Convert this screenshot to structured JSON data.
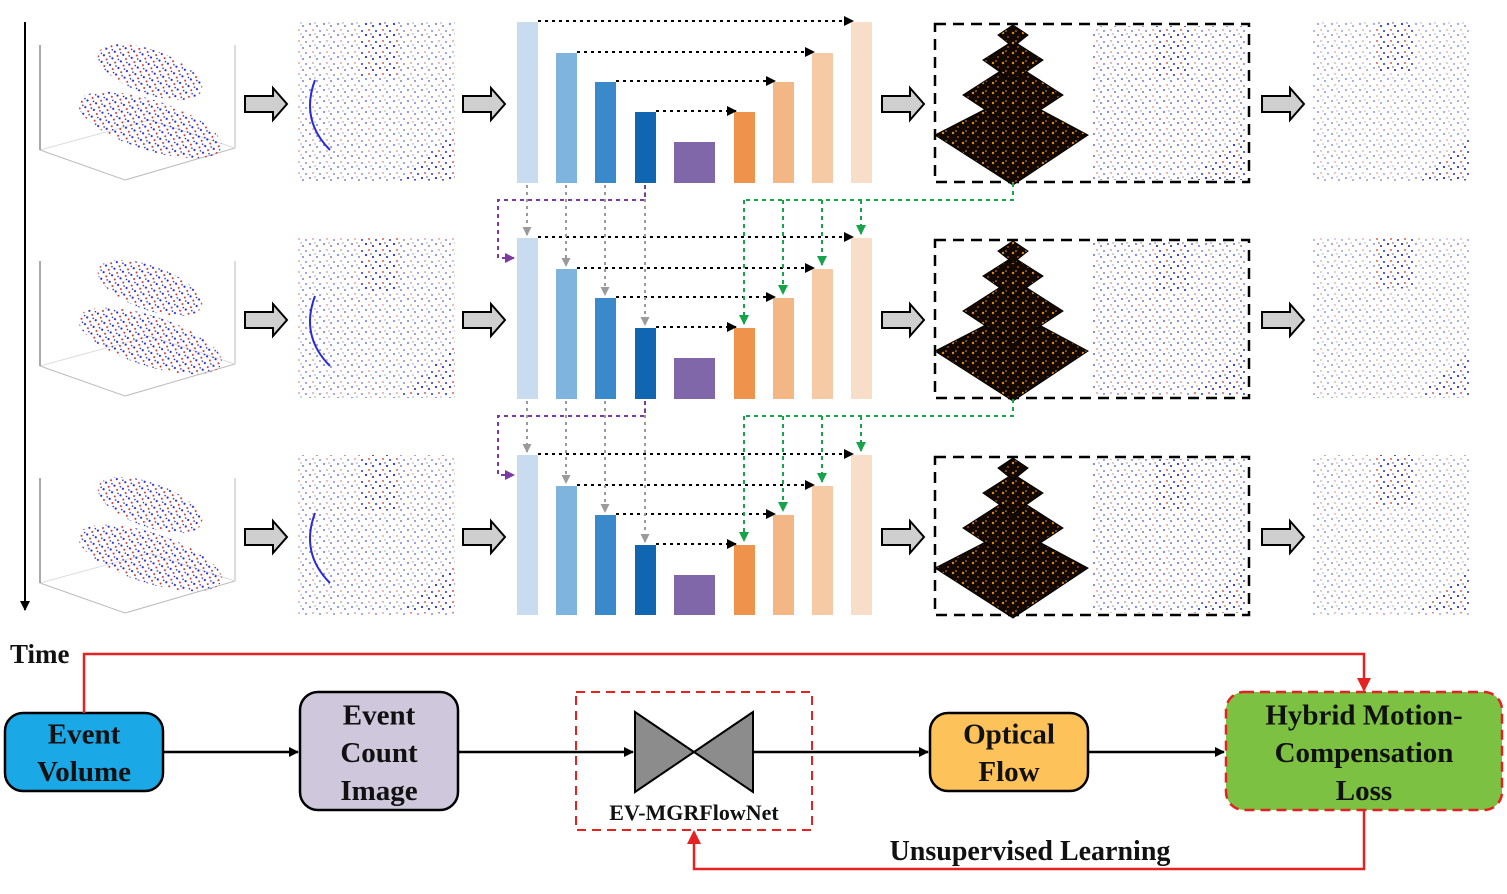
{
  "time_axis": {
    "label": "Time"
  },
  "pipeline": {
    "event_volume": "Event Volume",
    "event_count_image": "Event Count Image",
    "network": "EV-MGRFlowNet",
    "optical_flow": "Optical Flow",
    "loss": "Hybrid Motion-Compensation Loss",
    "feedback_label": "Unsupervised Learning"
  },
  "rows": [
    "timestep-1",
    "timestep-2",
    "timestep-3"
  ],
  "colors": {
    "encoder": [
      "#c9dcef",
      "#7fb4de",
      "#3a8acb",
      "#1166b2"
    ],
    "bottleneck": "#7f67a9",
    "decoder": [
      "#ee924c",
      "#f3b785",
      "#f5caa5",
      "#f8ddc9"
    ],
    "event_volume_box": "#1aa9e6",
    "event_count_box": "#cfc7dc",
    "optical_flow_box": "#fdc25a",
    "loss_box": "#7cc142",
    "purple_link": "#7b3aa0",
    "green_link": "#16a34a",
    "gray_link": "#9a9a9a",
    "red_link": "#e52222",
    "stroke": "#000000"
  }
}
